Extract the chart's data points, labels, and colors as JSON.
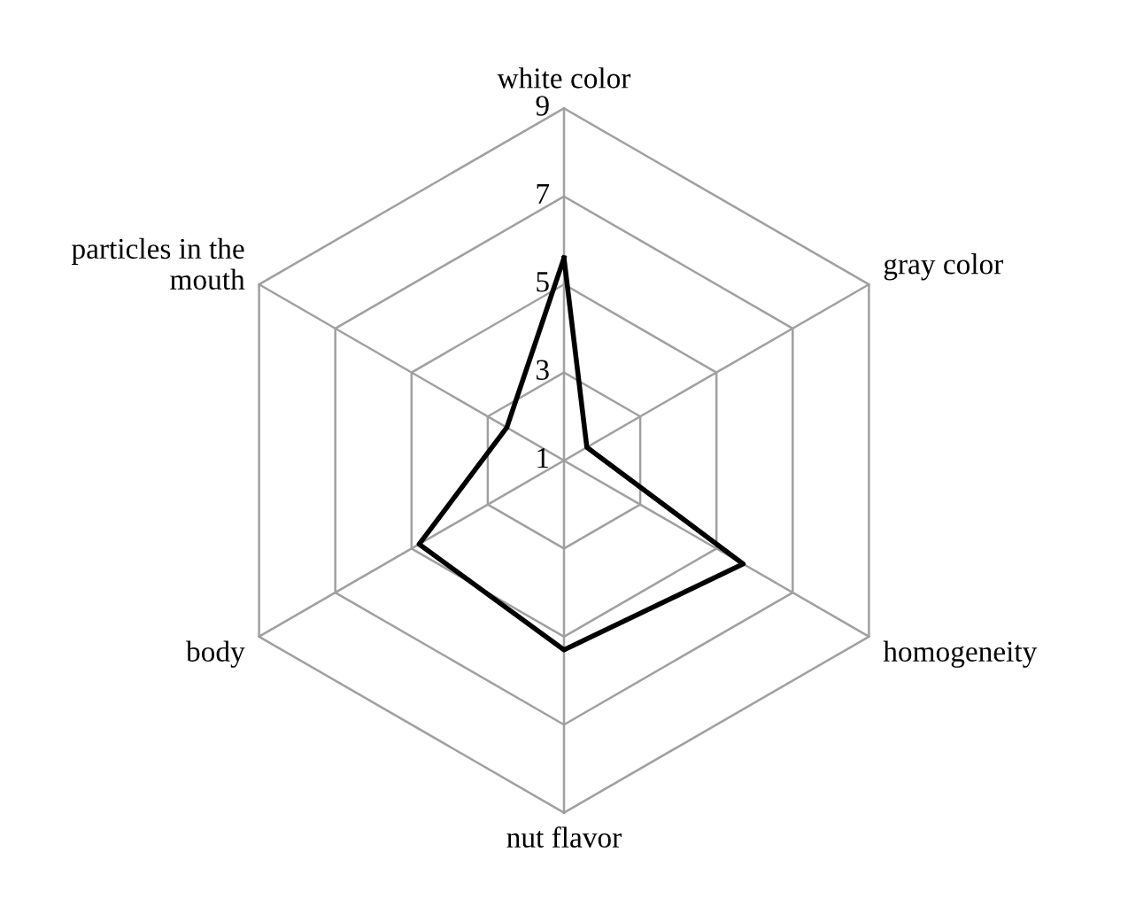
{
  "chart_data": {
    "type": "radar",
    "categories": [
      "white color",
      "gray color",
      "homogeneity",
      "nut flavor",
      "body",
      "particles in the mouth"
    ],
    "series": [
      {
        "color": "#000000",
        "values": [
          5.6,
          1.6,
          5.7,
          5.3,
          4.8,
          2.5
        ]
      }
    ],
    "ylim": [
      1,
      9
    ],
    "yticks": [
      1,
      3,
      5,
      7,
      9
    ],
    "grid": true,
    "legend": false,
    "marker": "none"
  }
}
